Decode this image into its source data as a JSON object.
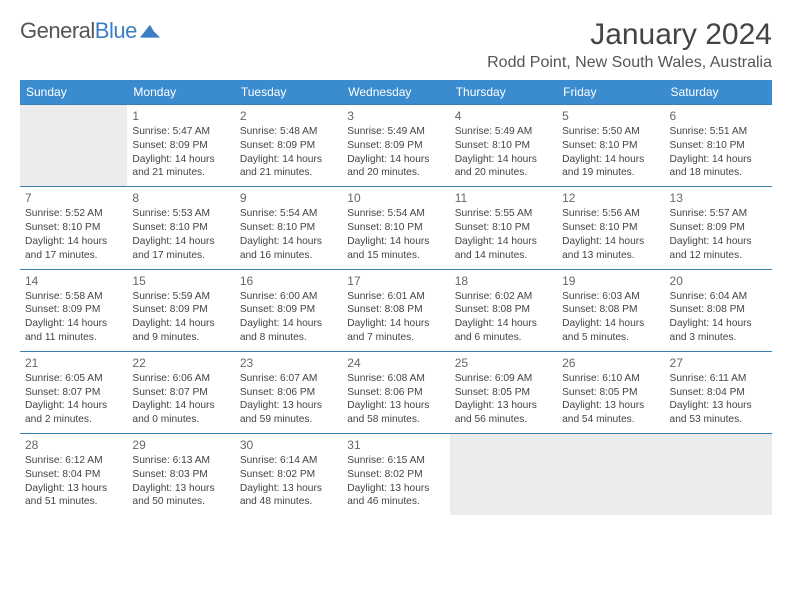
{
  "logo": {
    "word1": "General",
    "word2": "Blue"
  },
  "title": "January 2024",
  "location": "Rodd Point, New South Wales, Australia",
  "colors": {
    "header_bg": "#3a8ccf",
    "header_text": "#ffffff",
    "row_border": "#3a7fb0",
    "empty_bg": "#ececec",
    "logo_blue": "#3a7fc4",
    "text": "#444444"
  },
  "day_headers": [
    "Sunday",
    "Monday",
    "Tuesday",
    "Wednesday",
    "Thursday",
    "Friday",
    "Saturday"
  ],
  "weeks": [
    [
      null,
      {
        "n": "1",
        "sr": "Sunrise: 5:47 AM",
        "ss": "Sunset: 8:09 PM",
        "dl": "Daylight: 14 hours and 21 minutes."
      },
      {
        "n": "2",
        "sr": "Sunrise: 5:48 AM",
        "ss": "Sunset: 8:09 PM",
        "dl": "Daylight: 14 hours and 21 minutes."
      },
      {
        "n": "3",
        "sr": "Sunrise: 5:49 AM",
        "ss": "Sunset: 8:09 PM",
        "dl": "Daylight: 14 hours and 20 minutes."
      },
      {
        "n": "4",
        "sr": "Sunrise: 5:49 AM",
        "ss": "Sunset: 8:10 PM",
        "dl": "Daylight: 14 hours and 20 minutes."
      },
      {
        "n": "5",
        "sr": "Sunrise: 5:50 AM",
        "ss": "Sunset: 8:10 PM",
        "dl": "Daylight: 14 hours and 19 minutes."
      },
      {
        "n": "6",
        "sr": "Sunrise: 5:51 AM",
        "ss": "Sunset: 8:10 PM",
        "dl": "Daylight: 14 hours and 18 minutes."
      }
    ],
    [
      {
        "n": "7",
        "sr": "Sunrise: 5:52 AM",
        "ss": "Sunset: 8:10 PM",
        "dl": "Daylight: 14 hours and 17 minutes."
      },
      {
        "n": "8",
        "sr": "Sunrise: 5:53 AM",
        "ss": "Sunset: 8:10 PM",
        "dl": "Daylight: 14 hours and 17 minutes."
      },
      {
        "n": "9",
        "sr": "Sunrise: 5:54 AM",
        "ss": "Sunset: 8:10 PM",
        "dl": "Daylight: 14 hours and 16 minutes."
      },
      {
        "n": "10",
        "sr": "Sunrise: 5:54 AM",
        "ss": "Sunset: 8:10 PM",
        "dl": "Daylight: 14 hours and 15 minutes."
      },
      {
        "n": "11",
        "sr": "Sunrise: 5:55 AM",
        "ss": "Sunset: 8:10 PM",
        "dl": "Daylight: 14 hours and 14 minutes."
      },
      {
        "n": "12",
        "sr": "Sunrise: 5:56 AM",
        "ss": "Sunset: 8:10 PM",
        "dl": "Daylight: 14 hours and 13 minutes."
      },
      {
        "n": "13",
        "sr": "Sunrise: 5:57 AM",
        "ss": "Sunset: 8:09 PM",
        "dl": "Daylight: 14 hours and 12 minutes."
      }
    ],
    [
      {
        "n": "14",
        "sr": "Sunrise: 5:58 AM",
        "ss": "Sunset: 8:09 PM",
        "dl": "Daylight: 14 hours and 11 minutes."
      },
      {
        "n": "15",
        "sr": "Sunrise: 5:59 AM",
        "ss": "Sunset: 8:09 PM",
        "dl": "Daylight: 14 hours and 9 minutes."
      },
      {
        "n": "16",
        "sr": "Sunrise: 6:00 AM",
        "ss": "Sunset: 8:09 PM",
        "dl": "Daylight: 14 hours and 8 minutes."
      },
      {
        "n": "17",
        "sr": "Sunrise: 6:01 AM",
        "ss": "Sunset: 8:08 PM",
        "dl": "Daylight: 14 hours and 7 minutes."
      },
      {
        "n": "18",
        "sr": "Sunrise: 6:02 AM",
        "ss": "Sunset: 8:08 PM",
        "dl": "Daylight: 14 hours and 6 minutes."
      },
      {
        "n": "19",
        "sr": "Sunrise: 6:03 AM",
        "ss": "Sunset: 8:08 PM",
        "dl": "Daylight: 14 hours and 5 minutes."
      },
      {
        "n": "20",
        "sr": "Sunrise: 6:04 AM",
        "ss": "Sunset: 8:08 PM",
        "dl": "Daylight: 14 hours and 3 minutes."
      }
    ],
    [
      {
        "n": "21",
        "sr": "Sunrise: 6:05 AM",
        "ss": "Sunset: 8:07 PM",
        "dl": "Daylight: 14 hours and 2 minutes."
      },
      {
        "n": "22",
        "sr": "Sunrise: 6:06 AM",
        "ss": "Sunset: 8:07 PM",
        "dl": "Daylight: 14 hours and 0 minutes."
      },
      {
        "n": "23",
        "sr": "Sunrise: 6:07 AM",
        "ss": "Sunset: 8:06 PM",
        "dl": "Daylight: 13 hours and 59 minutes."
      },
      {
        "n": "24",
        "sr": "Sunrise: 6:08 AM",
        "ss": "Sunset: 8:06 PM",
        "dl": "Daylight: 13 hours and 58 minutes."
      },
      {
        "n": "25",
        "sr": "Sunrise: 6:09 AM",
        "ss": "Sunset: 8:05 PM",
        "dl": "Daylight: 13 hours and 56 minutes."
      },
      {
        "n": "26",
        "sr": "Sunrise: 6:10 AM",
        "ss": "Sunset: 8:05 PM",
        "dl": "Daylight: 13 hours and 54 minutes."
      },
      {
        "n": "27",
        "sr": "Sunrise: 6:11 AM",
        "ss": "Sunset: 8:04 PM",
        "dl": "Daylight: 13 hours and 53 minutes."
      }
    ],
    [
      {
        "n": "28",
        "sr": "Sunrise: 6:12 AM",
        "ss": "Sunset: 8:04 PM",
        "dl": "Daylight: 13 hours and 51 minutes."
      },
      {
        "n": "29",
        "sr": "Sunrise: 6:13 AM",
        "ss": "Sunset: 8:03 PM",
        "dl": "Daylight: 13 hours and 50 minutes."
      },
      {
        "n": "30",
        "sr": "Sunrise: 6:14 AM",
        "ss": "Sunset: 8:02 PM",
        "dl": "Daylight: 13 hours and 48 minutes."
      },
      {
        "n": "31",
        "sr": "Sunrise: 6:15 AM",
        "ss": "Sunset: 8:02 PM",
        "dl": "Daylight: 13 hours and 46 minutes."
      },
      null,
      null,
      null
    ]
  ]
}
